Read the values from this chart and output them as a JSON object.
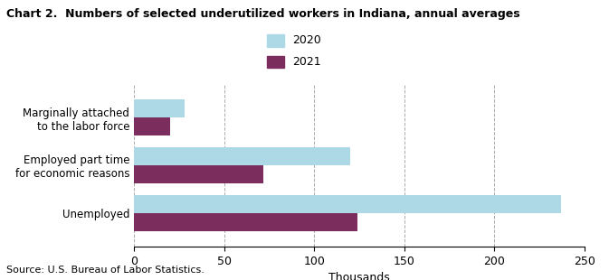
{
  "title": "Chart 2.  Numbers of selected underutilized workers in Indiana, annual averages",
  "categories": [
    "Unemployed",
    "Employed part time\nfor economic reasons",
    "Marginally attached\nto the labor force"
  ],
  "values_2020": [
    237,
    120,
    28
  ],
  "values_2021": [
    124,
    72,
    20
  ],
  "color_2020": "#add8e6",
  "color_2021": "#7B2D5E",
  "legend_labels": [
    "2020",
    "2021"
  ],
  "xlabel": "Thousands",
  "xlim": [
    0,
    250
  ],
  "xticks": [
    0,
    50,
    100,
    150,
    200,
    250
  ],
  "source": "Source: U.S. Bureau of Labor Statistics.",
  "bar_height": 0.38,
  "background_color": "#ffffff",
  "grid_color": "#aaaaaa"
}
